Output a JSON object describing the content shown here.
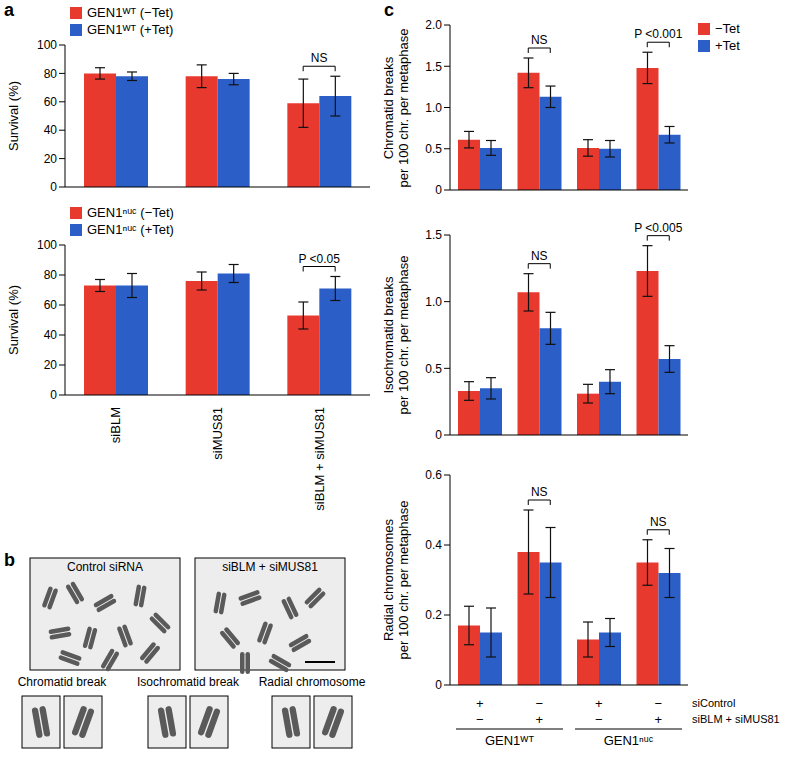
{
  "chart_data": [
    {
      "type": "bar",
      "panel_label": "a",
      "ylabel": [
        "Survival (%)"
      ],
      "categories": [
        null,
        null,
        null
      ],
      "series": [
        {
          "name": "GEN1ᵂᵀ (−Tet)",
          "color": "#e8392f",
          "values": [
            80,
            78,
            59
          ],
          "errors": [
            4,
            8,
            17
          ]
        },
        {
          "name": "GEN1ᵂᵀ (+Tet)",
          "color": "#2b5fc7",
          "values": [
            78,
            76,
            64
          ],
          "errors": [
            3,
            4,
            14
          ]
        }
      ],
      "ylim": [
        0,
        100
      ],
      "yticks": [
        0,
        20,
        40,
        60,
        80,
        100
      ],
      "legend": "upper left",
      "annotations": [
        {
          "category_index": 2,
          "text": "NS"
        }
      ]
    },
    {
      "type": "bar",
      "ylabel": [
        "Survival (%)"
      ],
      "categories": [
        "siBLM",
        "siMUS81",
        "siBLM + siMUS81"
      ],
      "series": [
        {
          "name": "GEN1ⁿᵘᶜ (−Tet)",
          "color": "#e8392f",
          "values": [
            73,
            76,
            53
          ],
          "errors": [
            4,
            6,
            9
          ]
        },
        {
          "name": "GEN1ⁿᵘᶜ (+Tet)",
          "color": "#2b5fc7",
          "values": [
            73,
            81,
            71
          ],
          "errors": [
            8,
            6,
            8
          ]
        }
      ],
      "ylim": [
        0,
        100
      ],
      "yticks": [
        0,
        20,
        40,
        60,
        80,
        100
      ],
      "legend": "upper left",
      "annotations": [
        {
          "category_index": 2,
          "text": "P <0.05"
        }
      ]
    },
    {
      "type": "bar",
      "panel_label": "c",
      "ylabel": [
        "Chromatid breaks",
        "per 100 chr. per metaphase"
      ],
      "categories": [
        null,
        null,
        null,
        null
      ],
      "series": [
        {
          "name": "−Tet",
          "color": "#e8392f",
          "values": [
            0.61,
            1.42,
            0.51,
            1.48
          ],
          "errors": [
            0.1,
            0.18,
            0.1,
            0.19
          ]
        },
        {
          "name": "+Tet",
          "color": "#2b5fc7",
          "values": [
            0.51,
            1.13,
            0.5,
            0.67
          ],
          "errors": [
            0.09,
            0.13,
            0.1,
            0.1
          ]
        }
      ],
      "ylim": [
        0,
        2
      ],
      "yticks": [
        0,
        0.5,
        {
          "value": 1,
          "label": "1.0"
        },
        1.5,
        {
          "value": 2,
          "label": "2.0"
        }
      ],
      "legend": "upper right",
      "annotations": [
        {
          "category_index": 1,
          "text": "NS"
        },
        {
          "category_index": 3,
          "text": "P <0.001"
        }
      ]
    },
    {
      "type": "bar",
      "ylabel": [
        "Isochromatid breaks",
        "per 100 chr. per metaphase"
      ],
      "categories": [
        null,
        null,
        null,
        null
      ],
      "series": [
        {
          "name": "−Tet",
          "color": "#e8392f",
          "values": [
            0.33,
            1.07,
            0.31,
            1.23
          ],
          "errors": [
            0.07,
            0.14,
            0.07,
            0.19
          ]
        },
        {
          "name": "+Tet",
          "color": "#2b5fc7",
          "values": [
            0.35,
            0.8,
            0.4,
            0.57
          ],
          "errors": [
            0.08,
            0.12,
            0.09,
            0.1
          ]
        }
      ],
      "ylim": [
        0,
        1.5
      ],
      "yticks": [
        0,
        0.5,
        {
          "value": 1,
          "label": "1.0"
        },
        1.5
      ],
      "annotations": [
        {
          "category_index": 1,
          "text": "NS"
        },
        {
          "category_index": 3,
          "text": "P <0.005"
        }
      ]
    },
    {
      "type": "bar",
      "ylabel": [
        "Radial chromosomes",
        "per 100 chr. per metaphase"
      ],
      "categories": [
        null,
        null,
        null,
        null
      ],
      "series": [
        {
          "name": "−Tet",
          "color": "#e8392f",
          "values": [
            0.17,
            0.38,
            0.13,
            0.35
          ],
          "errors": [
            0.055,
            0.12,
            0.05,
            0.065
          ]
        },
        {
          "name": "+Tet",
          "color": "#2b5fc7",
          "values": [
            0.15,
            0.35,
            0.15,
            0.32
          ],
          "errors": [
            0.07,
            0.1,
            0.04,
            0.07
          ]
        }
      ],
      "ylim": [
        0,
        0.6
      ],
      "yticks": [
        0,
        0.2,
        0.4,
        0.6
      ],
      "annotations": [
        {
          "category_index": 1,
          "text": "NS"
        },
        {
          "category_index": 3,
          "text": "NS"
        }
      ],
      "x_table": {
        "rows": [
          {
            "label": "siControl",
            "marks": [
              "+",
              "−",
              "+",
              "−"
            ]
          },
          {
            "label": "siBLM + siMUS81",
            "marks": [
              "−",
              "+",
              "−",
              "+"
            ]
          }
        ],
        "groups": [
          {
            "label": "GEN1ᵂᵀ",
            "span": [
              0,
              1
            ]
          },
          {
            "label": "GEN1ⁿᵘᶜ",
            "span": [
              2,
              3
            ]
          }
        ]
      }
    }
  ],
  "panel_b": {
    "panel_label": "b",
    "images": [
      "Control siRNA",
      "siBLM + siMUS81"
    ],
    "insets": [
      "Chromatid break",
      "Isochromatid break",
      "Radial chromosome"
    ]
  }
}
